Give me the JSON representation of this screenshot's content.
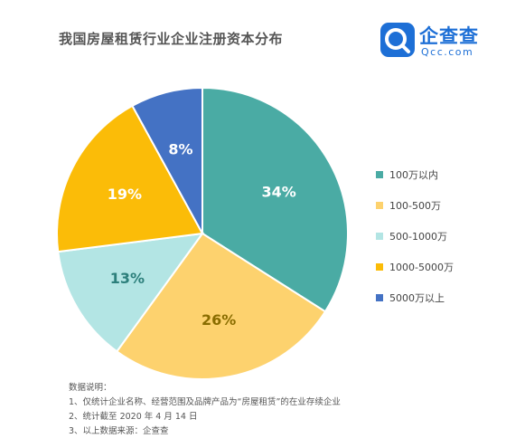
{
  "header": {
    "title": "我国房屋租赁行业企业注册资本分布"
  },
  "logo": {
    "name": "企查查",
    "domain": "Qcc.com"
  },
  "colors": {
    "slice_1": "#4aaba4",
    "slice_2": "#fdd26e",
    "slice_3": "#b3e5e4",
    "slice_4": "#fbbc08",
    "slice_5": "#4472c4",
    "logo_blue": "#1d6fd6"
  },
  "chart_data": {
    "type": "pie",
    "title": "我国房屋租赁行业企业注册资本分布",
    "legend_position": "right",
    "slices": [
      {
        "label": "100万以内",
        "value": 34,
        "display": "34%"
      },
      {
        "label": "100-500万",
        "value": 26,
        "display": "26%"
      },
      {
        "label": "500-1000万",
        "value": 13,
        "display": "13%"
      },
      {
        "label": "1000-5000万",
        "value": 19,
        "display": "19%"
      },
      {
        "label": "5000万以上",
        "value": 8,
        "display": "8%"
      }
    ]
  },
  "notes": {
    "heading": "数据说明：",
    "lines": [
      "1、仅统计企业名称、经营范围及品牌产品为“房屋租赁”的在业存续企业",
      "2、统计截至 2020 年 4 月 14 日",
      "3、以上数据来源：企查查"
    ]
  }
}
